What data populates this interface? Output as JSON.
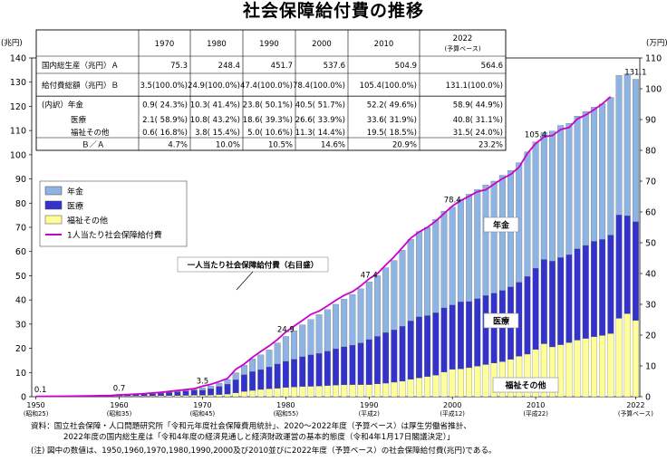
{
  "title": "社会保障給付費の推移",
  "chart_data": {
    "type": "bar",
    "stacked": true,
    "title": "社会保障給付費の推移",
    "ylabel_left": "(兆円)",
    "ylabel_right": "(万円)",
    "ylim_left": [
      0,
      140
    ],
    "ylim_right": [
      0,
      110
    ],
    "yticks_left": [
      0,
      10,
      20,
      30,
      40,
      50,
      60,
      70,
      80,
      90,
      100,
      110,
      120,
      130,
      140
    ],
    "yticks_right": [
      0,
      10,
      20,
      30,
      40,
      50,
      60,
      70,
      80,
      90,
      100,
      110
    ],
    "years": [
      1950,
      1951,
      1952,
      1953,
      1954,
      1955,
      1956,
      1957,
      1958,
      1959,
      1960,
      1961,
      1962,
      1963,
      1964,
      1965,
      1966,
      1967,
      1968,
      1969,
      1970,
      1971,
      1972,
      1973,
      1974,
      1975,
      1976,
      1977,
      1978,
      1979,
      1980,
      1981,
      1982,
      1983,
      1984,
      1985,
      1986,
      1987,
      1988,
      1989,
      1990,
      1991,
      1992,
      1993,
      1994,
      1995,
      1996,
      1997,
      1998,
      1999,
      2000,
      2001,
      2002,
      2003,
      2004,
      2005,
      2006,
      2007,
      2008,
      2009,
      2010,
      2011,
      2012,
      2013,
      2014,
      2015,
      2016,
      2017,
      2018,
      2019,
      2020,
      2021,
      2022
    ],
    "x_tick_labels": [
      {
        "year": 1950,
        "label": "1950",
        "sub": "(昭和25)"
      },
      {
        "year": 1960,
        "label": "1960",
        "sub": "(昭和35)"
      },
      {
        "year": 1970,
        "label": "1970",
        "sub": "(昭和45)"
      },
      {
        "year": 1980,
        "label": "1980",
        "sub": "(昭和55)"
      },
      {
        "year": 1990,
        "label": "1990",
        "sub": "(平成2)"
      },
      {
        "year": 2000,
        "label": "2000",
        "sub": "(平成12)"
      },
      {
        "year": 2010,
        "label": "2010",
        "sub": "(平成22)"
      },
      {
        "year": 2022,
        "label": "2022",
        "sub": "(予算ベース)"
      }
    ],
    "series": [
      {
        "name": "年金",
        "color": "#8db4e2",
        "values": [
          0.01,
          0.01,
          0.01,
          0.01,
          0.01,
          0.01,
          0.02,
          0.02,
          0.02,
          0.03,
          0.05,
          0.06,
          0.08,
          0.1,
          0.12,
          0.16,
          0.2,
          0.25,
          0.3,
          0.34,
          0.9,
          1.1,
          1.4,
          1.9,
          2.9,
          3.9,
          5.2,
          6.1,
          7.0,
          8.7,
          10.3,
          11.8,
          13.2,
          14.6,
          16.0,
          17.2,
          18.4,
          19.7,
          20.9,
          22.4,
          23.8,
          25.1,
          26.8,
          28.7,
          31.4,
          33.7,
          35.3,
          36.5,
          38.6,
          40.0,
          40.5,
          42.4,
          44.4,
          45.1,
          45.7,
          46.3,
          47.6,
          48.1,
          49.4,
          51.5,
          52.2,
          52.5,
          53.8,
          54.6,
          54.3,
          54.9,
          55.4,
          55.5,
          56.0,
          56.9,
          57.7,
          58.6,
          58.9
        ]
      },
      {
        "name": "医療",
        "color": "#3333cc",
        "values": [
          0.07,
          0.08,
          0.1,
          0.12,
          0.15,
          0.18,
          0.21,
          0.25,
          0.3,
          0.34,
          0.4,
          0.5,
          0.6,
          0.7,
          0.85,
          1.0,
          1.25,
          1.5,
          1.8,
          2.1,
          2.1,
          2.6,
          3.3,
          4.1,
          5.4,
          6.9,
          7.8,
          8.2,
          9.0,
          10.0,
          10.8,
          11.5,
          12.3,
          13.0,
          13.5,
          14.2,
          15.0,
          15.7,
          16.3,
          17.2,
          18.6,
          19.6,
          20.9,
          21.6,
          22.7,
          24.1,
          25.2,
          25.2,
          25.8,
          26.5,
          26.6,
          27.7,
          27.3,
          27.9,
          28.5,
          28.9,
          29.4,
          30.0,
          30.6,
          32.1,
          33.6,
          34.8,
          35.4,
          36.0,
          36.3,
          37.7,
          38.4,
          39.4,
          39.7,
          40.7,
          42.7,
          40.5,
          40.8
        ]
      },
      {
        "name": "福祉その他",
        "color": "#ffff99",
        "values": [
          0.02,
          0.02,
          0.03,
          0.03,
          0.04,
          0.05,
          0.05,
          0.06,
          0.07,
          0.08,
          0.2,
          0.22,
          0.25,
          0.3,
          0.35,
          0.4,
          0.45,
          0.5,
          0.55,
          0.6,
          0.6,
          0.7,
          0.9,
          1.1,
          1.6,
          2.2,
          2.6,
          3.0,
          3.3,
          3.5,
          3.8,
          4.0,
          4.2,
          4.3,
          4.4,
          4.6,
          4.8,
          4.9,
          5.0,
          5.0,
          5.0,
          5.3,
          5.6,
          6.0,
          6.4,
          7.2,
          7.8,
          8.3,
          8.9,
          10.2,
          11.3,
          11.5,
          12.0,
          12.6,
          13.3,
          13.9,
          14.5,
          15.4,
          16.7,
          17.6,
          19.5,
          21.9,
          20.6,
          21.5,
          22.4,
          23.4,
          24.1,
          24.8,
          25.3,
          26.1,
          32.4,
          34.3,
          31.5
        ]
      }
    ],
    "line": {
      "name": "1人当たり社会保障給付費",
      "axis": "right",
      "color": "#cc00cc",
      "values": [
        0.12,
        0.13,
        0.14,
        0.16,
        0.19,
        0.22,
        0.27,
        0.3,
        0.35,
        0.4,
        0.6,
        0.7,
        0.85,
        1.0,
        1.2,
        1.4,
        1.7,
        2.0,
        2.3,
        2.6,
        3.4,
        4.0,
        4.9,
        5.9,
        8.9,
        10.6,
        12.8,
        14.7,
        16.5,
        18.6,
        21.0,
        22.9,
        24.8,
        26.7,
        27.8,
        29.5,
        31.3,
        32.9,
        34.1,
        36.0,
        38.3,
        40.0,
        42.8,
        45.4,
        48.4,
        51.5,
        53.5,
        55.0,
        57.0,
        59.5,
        61.9,
        63.7,
        65.1,
        66.6,
        67.2,
        69.0,
        70.8,
        72.2,
        74.5,
        79.0,
        82.2,
        84.4,
        84.8,
        86.8,
        87.4,
        90.2,
        91.5,
        93.2,
        95.1,
        97.4,
        104.2,
        109.2,
        105.3
      ]
    },
    "point_labels": [
      {
        "year": 1950,
        "text": "0.1"
      },
      {
        "year": 1960,
        "text": "0.7"
      },
      {
        "year": 1970,
        "text": "3.5"
      },
      {
        "year": 1980,
        "text": "24.9"
      },
      {
        "year": 1990,
        "text": "47.4"
      },
      {
        "year": 2000,
        "text": "78.4"
      },
      {
        "year": 2010,
        "text": "105.4"
      },
      {
        "year": 2022,
        "text": "131.1"
      }
    ],
    "legend": [
      {
        "key": "pension",
        "label": "年金"
      },
      {
        "key": "medical",
        "label": "医療"
      },
      {
        "key": "welfare",
        "label": "福祉その他"
      },
      {
        "key": "line",
        "label": "1人当たり社会保障給付費"
      }
    ],
    "annotations": {
      "pension": "年金",
      "medical": "医療",
      "welfare": "福祉その他",
      "line_callout": "一人当たり社会保障給付費（右目盛）"
    },
    "table": {
      "columns": [
        "1970",
        "1980",
        "1990",
        "2000",
        "2010",
        "2022"
      ],
      "column_2022_sub": "(予算ベース)",
      "rows": [
        {
          "label": "国内総生産（兆円）Ａ",
          "values": [
            "75.3",
            "248.4",
            "451.7",
            "537.6",
            "504.9",
            "564.6"
          ]
        },
        {
          "label": "給付費総額（兆円）Ｂ",
          "values": [
            "3.5(100.0%)",
            "24.9(100.0%)",
            "47.4(100.0%)",
            "78.4(100.0%)",
            "105.4(100.0%)",
            "131.1(100.0%)"
          ]
        },
        {
          "label": "(内訳）年金",
          "values": [
            "0.9( 24.3%)",
            "10.3( 41.4%)",
            "23.8( 50.1%)",
            "40.5( 51.7%)",
            "52.2( 49.6%)",
            "58.9( 44.9%)"
          ]
        },
        {
          "label": "医療",
          "values": [
            "2.1( 58.9%)",
            "10.8( 43.2%)",
            "18.6( 39.3%)",
            "26.6( 33.9%)",
            "33.6( 31.9%)",
            "40.8( 31.1%)"
          ]
        },
        {
          "label": "福祉その他",
          "values": [
            "0.6( 16.8%)",
            "3.8( 15.4%)",
            "5.0( 10.6%)",
            "11.3( 14.4%)",
            "19.5( 18.5%)",
            "31.5( 24.0%)"
          ]
        },
        {
          "label": "Ｂ／Ａ",
          "values": [
            "4.7%",
            "10.0%",
            "10.5%",
            "14.6%",
            "20.9%",
            "23.2%"
          ]
        }
      ]
    }
  },
  "notes": [
    "資料：国立社会保障・人口問題研究所「令和元年度社会保障費用統計」、2020～2022年度（予算ベース）は厚生労働省推計、",
    "2022年度の国内総生産は「令和4年度の経済見通しと経済財政運営の基本的態度（令和4年1月17日閣議決定）」",
    "(注) 図中の数値は、1950,1960,1970,1980,1990,2000及び2010並びに2022年度（予算ベース）の社会保障給付費(兆円)である。"
  ]
}
